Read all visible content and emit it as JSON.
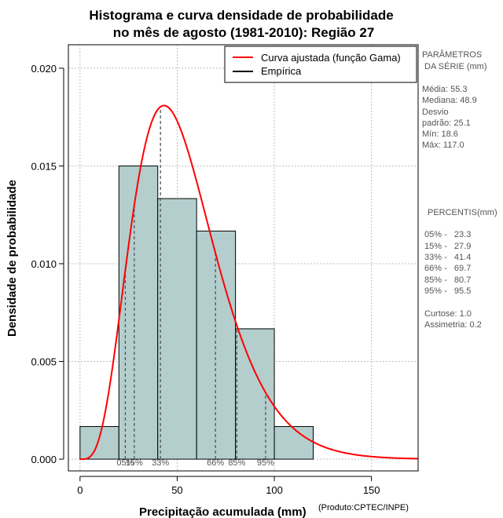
{
  "chart_data": {
    "type": "histogram",
    "title_lines": [
      "Histograma e curva densidade de probabilidade",
      "no mês de agosto (1981-2010): Região 27"
    ],
    "xlabel": "Precipitação acumulada (mm)",
    "ylabel": "Densidade de probabilidade",
    "credit": "(Produto:CPTEC/INPE)",
    "xlim": [
      -6,
      174
    ],
    "ylim": [
      -0.0006,
      0.0212
    ],
    "x_ticks": [
      0,
      50,
      100,
      150
    ],
    "x_tick_labels": [
      "0",
      "50",
      "100",
      "150"
    ],
    "y_ticks": [
      0.0,
      0.005,
      0.01,
      0.015,
      0.02
    ],
    "y_tick_labels": [
      "0.000",
      "0.005",
      "0.010",
      "0.015",
      "0.020"
    ],
    "grid": true,
    "bins": [
      {
        "x0": 0,
        "x1": 20,
        "density": 0.00167
      },
      {
        "x0": 20,
        "x1": 40,
        "density": 0.015
      },
      {
        "x0": 40,
        "x1": 60,
        "density": 0.01333
      },
      {
        "x0": 60,
        "x1": 80,
        "density": 0.01167
      },
      {
        "x0": 80,
        "x1": 100,
        "density": 0.00667
      },
      {
        "x0": 100,
        "x1": 120,
        "density": 0.00167
      }
    ],
    "gamma_fit": {
      "shape": 5.0,
      "scale": 10.8
    },
    "percentiles": [
      {
        "label": "05%",
        "value": 23.3
      },
      {
        "label": "15%",
        "value": 27.9
      },
      {
        "label": "33%",
        "value": 41.4
      },
      {
        "label": "66%",
        "value": 69.7
      },
      {
        "label": "85%",
        "value": 80.7
      },
      {
        "label": "95%",
        "value": 95.5
      }
    ],
    "legend": {
      "position": "top-right",
      "entries": [
        {
          "label": "Curva ajustada (função Gama)",
          "color": "#ff0000"
        },
        {
          "label": "Empírica",
          "color": "#000000"
        }
      ]
    },
    "colors": {
      "bar_fill": "#b4cece",
      "curve": "#ff0000",
      "percentile_line": "#555555",
      "grid": "#bfbfbf"
    }
  },
  "side_panel": {
    "params_title": [
      "PARÂMETROS",
      " DA SÉRIE (mm)"
    ],
    "params": [
      "Média:  55.3",
      "Mediana:  48.9",
      "Desvio",
      "padrão:  25.1",
      "Mín:  18.6",
      "Máx:  117.0"
    ],
    "percentis_title": "PERCENTIS(mm)",
    "percentis": [
      "05% -   23.3",
      "15% -   27.9",
      "33% -   41.4",
      "66% -   69.7",
      "85% -   80.7",
      "95% -   95.5"
    ],
    "stats": [
      "Curtose:  1.0",
      "Assimetria:  0.2"
    ]
  }
}
